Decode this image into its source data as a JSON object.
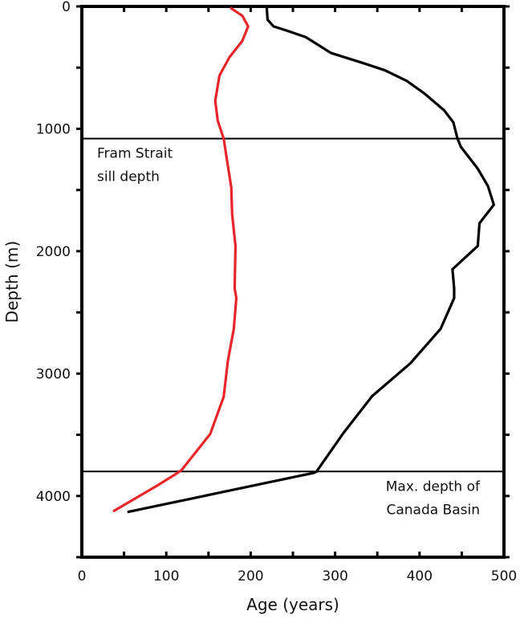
{
  "chart_data": {
    "type": "line",
    "title": "",
    "xlabel": "Age  (years)",
    "ylabel": "Depth  (m)",
    "xlim": [
      0,
      500
    ],
    "ylim": [
      0,
      4500
    ],
    "y_inverted": true,
    "x_ticks": [
      0,
      100,
      200,
      300,
      400,
      500
    ],
    "y_ticks": [
      0,
      1000,
      2000,
      3000,
      4000
    ],
    "grid": false,
    "series": [
      {
        "name": "red profile",
        "color": "#e8262a",
        "points": [
          [
            176,
            11
          ],
          [
            190,
            76
          ],
          [
            197,
            163
          ],
          [
            190,
            283
          ],
          [
            175,
            413
          ],
          [
            163,
            565
          ],
          [
            158,
            772
          ],
          [
            161,
            935
          ],
          [
            168,
            1080
          ],
          [
            173,
            1304
          ],
          [
            177,
            1478
          ],
          [
            178,
            1696
          ],
          [
            182,
            1957
          ],
          [
            181,
            2304
          ],
          [
            183,
            2383
          ],
          [
            180,
            2634
          ],
          [
            173,
            2895
          ],
          [
            168,
            3190
          ],
          [
            152,
            3494
          ],
          [
            118,
            3789
          ],
          [
            111,
            3822
          ],
          [
            88,
            3920
          ],
          [
            37,
            4126
          ]
        ]
      },
      {
        "name": "black profile",
        "color": "#000000",
        "points": [
          [
            219,
            11
          ],
          [
            220,
            109
          ],
          [
            227,
            163
          ],
          [
            242,
            196
          ],
          [
            265,
            250
          ],
          [
            280,
            315
          ],
          [
            295,
            380
          ],
          [
            335,
            467
          ],
          [
            359,
            522
          ],
          [
            385,
            609
          ],
          [
            405,
            707
          ],
          [
            429,
            848
          ],
          [
            440,
            946
          ],
          [
            445,
            1080
          ],
          [
            449,
            1148
          ],
          [
            469,
            1326
          ],
          [
            481,
            1467
          ],
          [
            488,
            1620
          ],
          [
            471,
            1772
          ],
          [
            469,
            1957
          ],
          [
            439,
            2148
          ],
          [
            441,
            2304
          ],
          [
            441,
            2383
          ],
          [
            425,
            2634
          ],
          [
            389,
            2917
          ],
          [
            344,
            3183
          ],
          [
            310,
            3484
          ],
          [
            278,
            3800
          ],
          [
            275,
            3811
          ],
          [
            155,
            3985
          ],
          [
            54,
            4131
          ]
        ]
      }
    ],
    "reference_lines": [
      {
        "depth": 1080,
        "label_lines": [
          "Fram Strait",
          "sill depth"
        ],
        "label_side": "left"
      },
      {
        "depth": 3800,
        "label_lines": [
          "Max. depth of",
          "Canada Basin"
        ],
        "label_side": "right"
      }
    ]
  }
}
